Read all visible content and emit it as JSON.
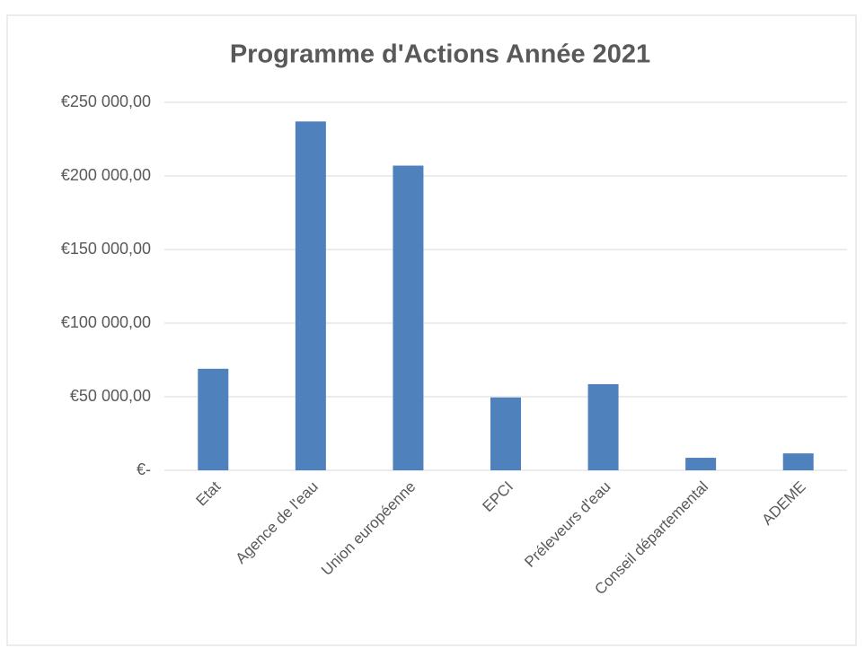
{
  "chart_data": {
    "type": "bar",
    "title": "Programme d'Actions Année 2021",
    "categories": [
      "Etat",
      "Agence de l'eau",
      "Union européenne",
      "EPCI",
      "Préleveurs d'eau",
      "Conseil départemental",
      "ADEME"
    ],
    "values": [
      69000,
      237000,
      207000,
      49500,
      58500,
      8500,
      11500
    ],
    "color": "#4f81bd",
    "ylim": [
      0,
      250000
    ],
    "yticks": [
      {
        "value": 0,
        "label": "€-"
      },
      {
        "value": 50000,
        "label": "€50 000,00"
      },
      {
        "value": 100000,
        "label": "€100 000,00"
      },
      {
        "value": 150000,
        "label": "€150 000,00"
      },
      {
        "value": 200000,
        "label": "€200 000,00"
      },
      {
        "value": 250000,
        "label": "€250 000,00"
      }
    ],
    "grid": true
  }
}
